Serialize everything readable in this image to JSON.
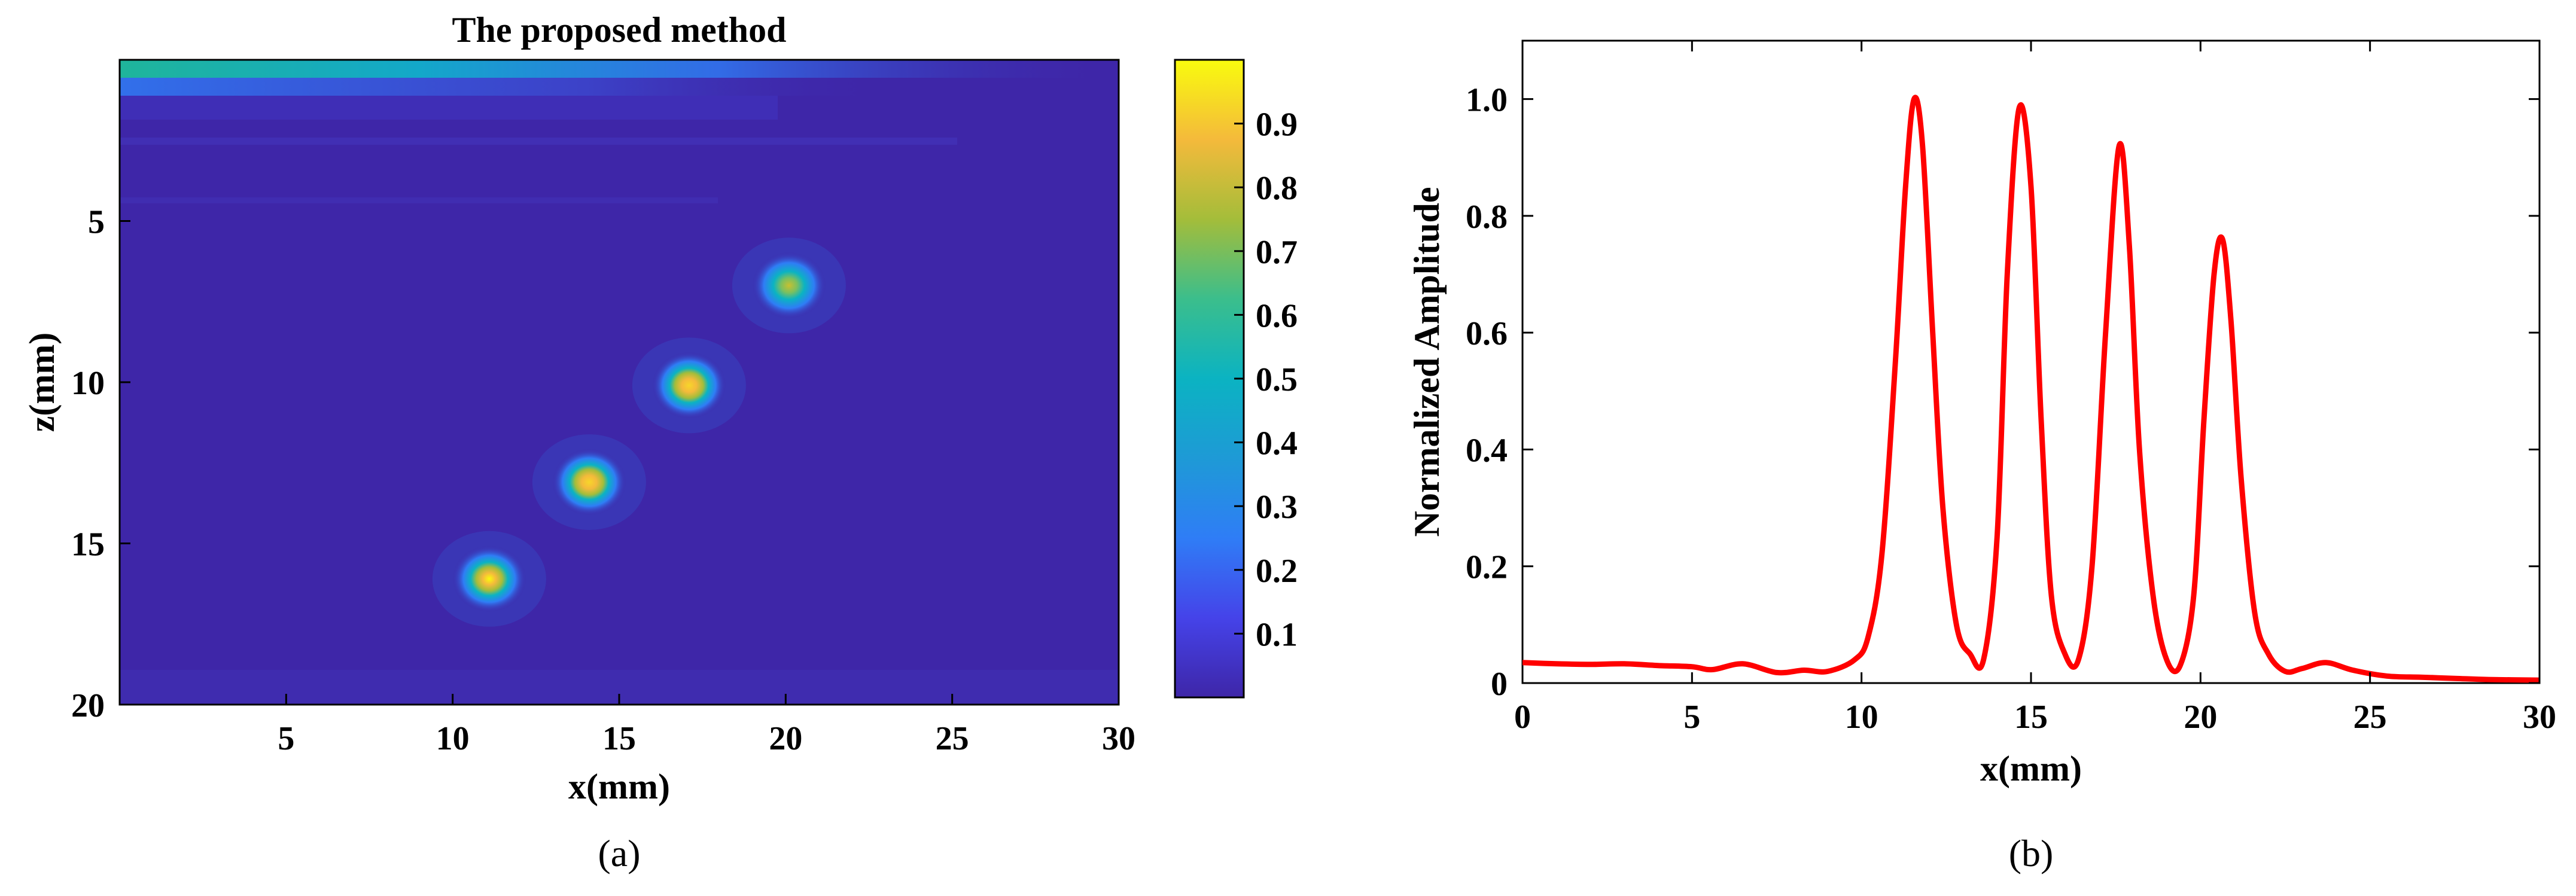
{
  "chart_data": [
    {
      "type": "heatmap",
      "panel_label": "(a)",
      "title": "The proposed method",
      "xlabel": "x(mm)",
      "ylabel": "z(mm)",
      "xlim": [
        0,
        30
      ],
      "ylim": [
        20,
        0
      ],
      "y_axis_inverted": true,
      "x_ticks": [
        5,
        10,
        15,
        20,
        25,
        30
      ],
      "y_ticks": [
        5,
        10,
        15,
        20
      ],
      "colormap": "parula",
      "colorbar": {
        "range": [
          0,
          1
        ],
        "ticks": [
          0.1,
          0.2,
          0.3,
          0.4,
          0.5,
          0.6,
          0.7,
          0.8,
          0.9
        ],
        "placement": "right"
      },
      "grid": false,
      "background_value": 0.03,
      "bright_band": {
        "z_range": [
          0,
          0.5
        ],
        "value": 0.45,
        "fade_to_x": 13
      },
      "point_targets": [
        {
          "x": 11.1,
          "z": 16.1,
          "peak": 1.0
        },
        {
          "x": 14.1,
          "z": 13.1,
          "peak": 0.95
        },
        {
          "x": 17.1,
          "z": 10.1,
          "peak": 0.9
        },
        {
          "x": 20.1,
          "z": 7.0,
          "peak": 0.75
        }
      ]
    },
    {
      "type": "line",
      "panel_label": "(b)",
      "title": "",
      "xlabel": "x(mm)",
      "ylabel": "Normalized Amplitude",
      "xlim": [
        0,
        30
      ],
      "ylim": [
        0,
        1.1
      ],
      "x_ticks": [
        0,
        5,
        10,
        15,
        20,
        25,
        30
      ],
      "y_ticks": [
        0,
        0.2,
        0.4,
        0.6,
        0.8,
        1.0
      ],
      "y_tick_labels": [
        "0",
        "0.2",
        "0.4",
        "0.6",
        "0.8",
        "1.0"
      ],
      "grid": false,
      "series": [
        {
          "color": "#ff0000",
          "x": [
            0,
            1,
            2,
            3,
            4,
            5,
            5.6,
            6.5,
            7.5,
            8.3,
            9,
            9.8,
            10.2,
            10.6,
            11.0,
            11.3,
            11.55,
            11.8,
            12.1,
            12.4,
            12.8,
            13.2,
            13.6,
            14.0,
            14.3,
            14.65,
            15.0,
            15.3,
            15.6,
            16.0,
            16.4,
            16.8,
            17.2,
            17.6,
            17.9,
            18.2,
            18.6,
            19.0,
            19.4,
            19.8,
            20.1,
            20.4,
            20.65,
            20.9,
            21.2,
            21.6,
            22.0,
            22.5,
            23.0,
            23.7,
            24.5,
            25.5,
            26.5,
            27.5,
            28.5,
            30
          ],
          "y": [
            0.035,
            0.033,
            0.032,
            0.033,
            0.03,
            0.028,
            0.023,
            0.033,
            0.018,
            0.022,
            0.02,
            0.04,
            0.08,
            0.22,
            0.55,
            0.85,
            1.0,
            0.92,
            0.6,
            0.3,
            0.1,
            0.05,
            0.04,
            0.25,
            0.7,
            0.985,
            0.85,
            0.45,
            0.15,
            0.05,
            0.04,
            0.2,
            0.6,
            0.92,
            0.75,
            0.4,
            0.15,
            0.04,
            0.03,
            0.15,
            0.45,
            0.7,
            0.76,
            0.62,
            0.35,
            0.12,
            0.05,
            0.02,
            0.025,
            0.035,
            0.022,
            0.012,
            0.01,
            0.008,
            0.006,
            0.005
          ]
        }
      ]
    }
  ]
}
